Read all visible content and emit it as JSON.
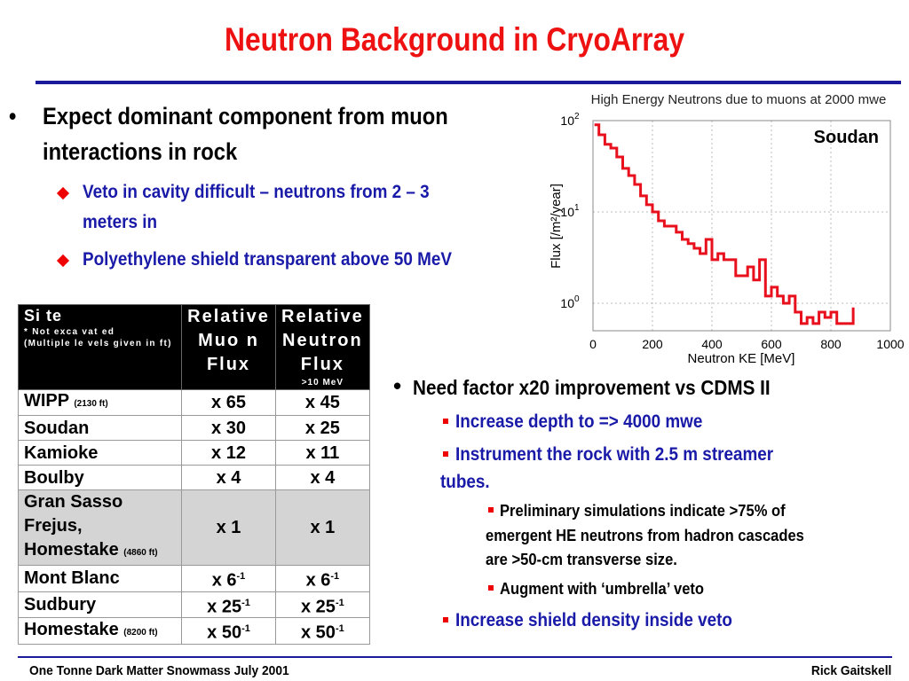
{
  "title": "Neutron Background in CryoArray",
  "bullets": {
    "main": [
      "Expect dominant component from muon",
      "interactions in rock"
    ],
    "subs": [
      [
        "Veto in cavity difficult – neutrons from 2 – 3",
        "meters in"
      ],
      [
        "Polyethylene shield transparent above 50 MeV"
      ]
    ]
  },
  "table": {
    "header": {
      "site": "Si te",
      "note1": "* Not exca vat ed",
      "note2": "(Multiple le vels  given in ft)",
      "muon": [
        "Relative",
        "Muo n",
        "Flux"
      ],
      "neutron": [
        "Relative",
        "Neutron",
        "Flux"
      ],
      "neutron_sub": ">10 MeV"
    },
    "rows": [
      {
        "site": "WIPP",
        "depth": "(2130 ft)",
        "muon": "x 65",
        "neutron": "x 45"
      },
      {
        "site": "Soudan",
        "muon": "x 30",
        "neutron": "x 25"
      },
      {
        "site": "Kamioke",
        "muon": "x 12",
        "neutron": "x 11"
      },
      {
        "site": "Boulby",
        "muon": "x 4",
        "neutron": "x 4"
      },
      {
        "site_lines": [
          "Gran Sasso",
          "Frejus,",
          "Homestake"
        ],
        "depth": "(4860 ft)",
        "muon": "x 1",
        "neutron": "x 1"
      },
      {
        "site": "Mont Blanc",
        "muon": "x 6",
        "muon_exp": "-1",
        "neutron": "x 6",
        "neutron_exp": "-1"
      },
      {
        "site": "Sudbury",
        "muon": "x 25",
        "muon_exp": "-1",
        "neutron": "x 25",
        "neutron_exp": "-1"
      },
      {
        "site": "Homestake",
        "depth": "(8200 ft)",
        "muon": "x 50",
        "muon_exp": "-1",
        "neutron": "x 50",
        "neutron_exp": "-1"
      }
    ]
  },
  "right": {
    "main": "Need factor x20 improvement vs CDMS II",
    "s1": "Increase depth to => 4000 mwe",
    "s2": [
      "Instrument the rock with 2.5 m streamer",
      "tubes."
    ],
    "s3": [
      "Preliminary simulations indicate >75% of",
      "emergent HE neutrons from hadron cascades",
      "are >50-cm transverse size."
    ],
    "s4": "Augment with ‘umbrella’ veto",
    "s5": "Increase shield density inside veto"
  },
  "footer": {
    "left": "One Tonne Dark Matter Snowmass July 2001",
    "right": "Rick Gaitskell"
  },
  "chart_data": {
    "type": "line",
    "title": "High Energy Neutrons due to muons at 2000 mwe",
    "xlabel": "Neutron KE [MeV]",
    "ylabel": "Flux [/m²/year]",
    "annotation": "Soudan",
    "xlim": [
      0,
      1000
    ],
    "ylim": [
      0.5,
      100
    ],
    "yscale": "log",
    "grid": true,
    "color": "#e8101c",
    "xticks": [
      "0",
      "200",
      "400",
      "600",
      "800",
      "1000"
    ],
    "yticks": [
      "10",
      "10",
      "10"
    ],
    "ytick_exp": [
      "2",
      "1",
      "0"
    ],
    "x": [
      5,
      20,
      40,
      60,
      80,
      100,
      120,
      140,
      160,
      180,
      200,
      220,
      240,
      260,
      280,
      300,
      320,
      340,
      360,
      380,
      400,
      420,
      440,
      460,
      480,
      500,
      520,
      540,
      560,
      580,
      600,
      620,
      640,
      660,
      680,
      700,
      720,
      740,
      760,
      780,
      800,
      820,
      840,
      860,
      875
    ],
    "y": [
      90,
      70,
      55,
      50,
      40,
      30,
      25,
      20,
      15,
      12,
      10,
      8,
      7,
      7,
      6,
      5,
      4.5,
      4,
      3.5,
      5,
      3,
      3.5,
      3,
      3,
      2,
      2,
      2.5,
      1.8,
      3,
      1.2,
      1.5,
      1.2,
      1,
      1.2,
      0.8,
      0.6,
      0.7,
      0.6,
      0.8,
      0.7,
      0.8,
      0.6,
      0.6,
      0.6,
      0.9
    ]
  }
}
